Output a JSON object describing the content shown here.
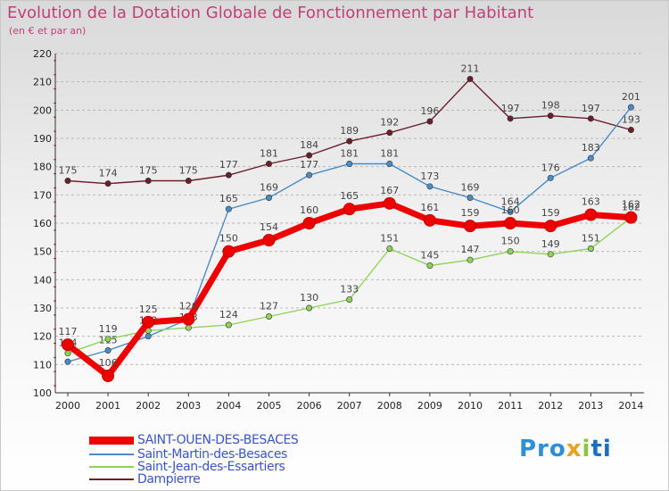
{
  "chart_data": {
    "type": "line",
    "title": "Evolution de la Dotation Globale de Fonctionnement par Habitant",
    "subtitle": "(en € et par an)",
    "xlabel": "",
    "ylabel": "",
    "x": [
      "2000",
      "2001",
      "2002",
      "2003",
      "2004",
      "2005",
      "2006",
      "2007",
      "2008",
      "2009",
      "2010",
      "2011",
      "2012",
      "2013",
      "2014"
    ],
    "ylim": [
      100,
      220
    ],
    "yticks": [
      "100",
      "110",
      "120",
      "130",
      "140",
      "150",
      "160",
      "170",
      "180",
      "190",
      "200",
      "210",
      "220"
    ],
    "grid": "horizontal-dashed",
    "legend_position": "bottom-left",
    "series": [
      {
        "name": "Dampierre",
        "color": "#6b1f2a",
        "values": [
          175,
          174,
          175,
          175,
          177,
          181,
          184,
          189,
          192,
          196,
          211,
          197,
          198,
          197,
          193
        ],
        "labels": [
          "175",
          "174",
          "175",
          "175",
          "177",
          "181",
          "184",
          "189",
          "192",
          "196",
          "211",
          "197",
          "198",
          "197",
          "193"
        ]
      },
      {
        "name": "Saint-Martin-des-Besaces",
        "color": "#4a8cc7",
        "values": [
          111,
          115,
          120,
          126,
          165,
          169,
          177,
          181,
          181,
          173,
          169,
          164,
          176,
          183,
          201
        ],
        "labels": [
          "",
          "115",
          "",
          "",
          "165",
          "169",
          "177",
          "181",
          "181",
          "173",
          "169",
          "164",
          "176",
          "183",
          "201"
        ]
      },
      {
        "name": "Saint-Jean-des-Essartiers",
        "color": "#8fd35a",
        "values": [
          114,
          119,
          122,
          123,
          124,
          127,
          130,
          133,
          151,
          145,
          147,
          150,
          149,
          151,
          162
        ],
        "labels": [
          "114",
          "119",
          "122",
          "123",
          "124",
          "127",
          "130",
          "133",
          "151",
          "145",
          "147",
          "150",
          "149",
          "151",
          "162"
        ]
      },
      {
        "name": "SAINT-OUEN-DES-BESACES",
        "color": "#ee0000",
        "values": [
          117,
          106,
          125,
          126,
          150,
          154,
          160,
          165,
          167,
          161,
          159,
          160,
          159,
          163,
          162
        ],
        "labels": [
          "117",
          "106",
          "125",
          "126",
          "150",
          "154",
          "160",
          "165",
          "167",
          "161",
          "159",
          "160",
          "159",
          "163",
          "162"
        ]
      }
    ]
  },
  "legend": [
    {
      "label": "SAINT-OUEN-DES-BESACES",
      "color": "#ee0000"
    },
    {
      "label": "Saint-Martin-des-Besaces",
      "color": "#4a8cc7"
    },
    {
      "label": "Saint-Jean-des-Essartiers",
      "color": "#8fd35a"
    },
    {
      "label": "Dampierre",
      "color": "#6b1f2a"
    }
  ],
  "logo": {
    "p1": "Pro",
    "p2": "x",
    "p3": "i",
    "p4": "ti"
  }
}
